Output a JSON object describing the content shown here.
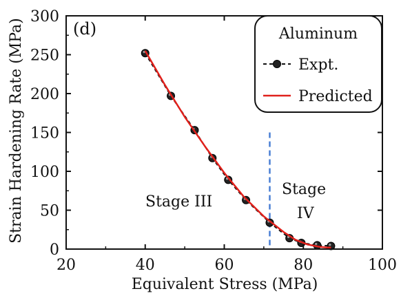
{
  "chart_data": {
    "type": "line",
    "panel_label": "(d)",
    "xlabel": "Equivalent Stress (MPa)",
    "ylabel": "Strain Hardening Rate (MPa)",
    "xlim": [
      20,
      100
    ],
    "ylim": [
      0,
      300
    ],
    "xticks": [
      20,
      40,
      60,
      80,
      100
    ],
    "yticks": [
      0,
      50,
      100,
      150,
      200,
      250,
      300
    ],
    "legend": {
      "title": "Aluminum",
      "placement": "top-right",
      "entries": [
        "Expt.",
        "Predicted"
      ]
    },
    "series": [
      {
        "name": "Expt.",
        "style": "dashed-with-markers",
        "color": "#111111",
        "x": [
          40,
          46.5,
          52.5,
          57,
          61,
          65.5,
          71.5,
          76.5,
          79.5,
          83.5,
          87
        ],
        "y": [
          252,
          197,
          153,
          117,
          89,
          63,
          34,
          14,
          8,
          5,
          4
        ]
      },
      {
        "name": "Predicted",
        "style": "solid",
        "color": "#e0201b",
        "x": [
          40,
          45,
          50,
          55,
          60,
          65,
          70,
          72,
          75,
          78,
          81,
          84,
          86,
          87
        ],
        "y": [
          255,
          211,
          170,
          133,
          98,
          67,
          42,
          34,
          22,
          12,
          6,
          3,
          2,
          2
        ]
      }
    ],
    "stage_divider": {
      "x": 71.5,
      "y_top": 150,
      "color": "#4a7fd4"
    },
    "annotations": [
      {
        "text": "Stage III"
      },
      {
        "text_line1": "Stage",
        "text_line2": "IV"
      }
    ]
  }
}
